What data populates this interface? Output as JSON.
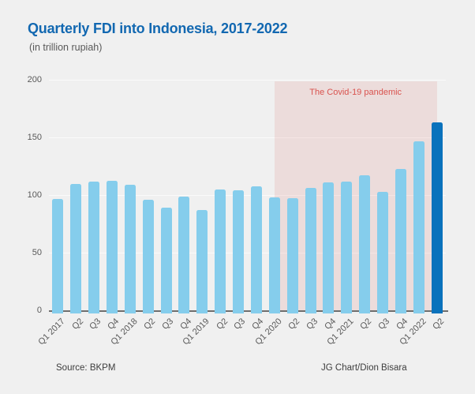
{
  "page": {
    "background": "#f0f0f0"
  },
  "header": {
    "title": "Quarterly FDI into Indonesia, 2017-2022",
    "subtitle": "(in trillion rupiah)"
  },
  "chart_data": {
    "type": "bar",
    "title": "Quarterly FDI into Indonesia, 2017-2022",
    "subtitle": "(in trillion rupiah)",
    "unit": "trillion rupiah",
    "categories": [
      "Q1 2017",
      "Q2",
      "Q3",
      "Q4",
      "Q1 2018",
      "Q2",
      "Q3",
      "Q4",
      "Q1 2019",
      "Q2",
      "Q3",
      "Q4",
      "Q1 2020",
      "Q2",
      "Q3",
      "Q4",
      "Q1 2021",
      "Q2",
      "Q3",
      "Q4",
      "Q1 2022",
      "Q2"
    ],
    "values": [
      97,
      110,
      112,
      112.5,
      109,
      96,
      89,
      99,
      87,
      105,
      104.5,
      107.5,
      98,
      97.5,
      106,
      111,
      112,
      117,
      103,
      122.5,
      147,
      163
    ],
    "ylim": [
      0,
      200
    ],
    "yticks": [
      0,
      50,
      100,
      150,
      200
    ],
    "grid": true,
    "legend": false,
    "highlight_index": 21,
    "annotation": {
      "label": "The Covid-19 pandemic",
      "start_index": 12,
      "end_index": 21,
      "start_label": "Q1 2020",
      "end_label": "Q2 2022"
    },
    "colors": {
      "bar": "#85cdec",
      "bar_highlight": "#0a72bc",
      "annotation_fill": "rgba(213,82,77,0.12)",
      "annotation_text": "#d9534f",
      "title": "#1268b1",
      "axis_text": "#595959",
      "gridline": "#fafafa",
      "axis_line": "#6e6e6e"
    }
  },
  "footer": {
    "source": "Source: BKPM",
    "credit": "JG Chart/Dion Bisara"
  }
}
